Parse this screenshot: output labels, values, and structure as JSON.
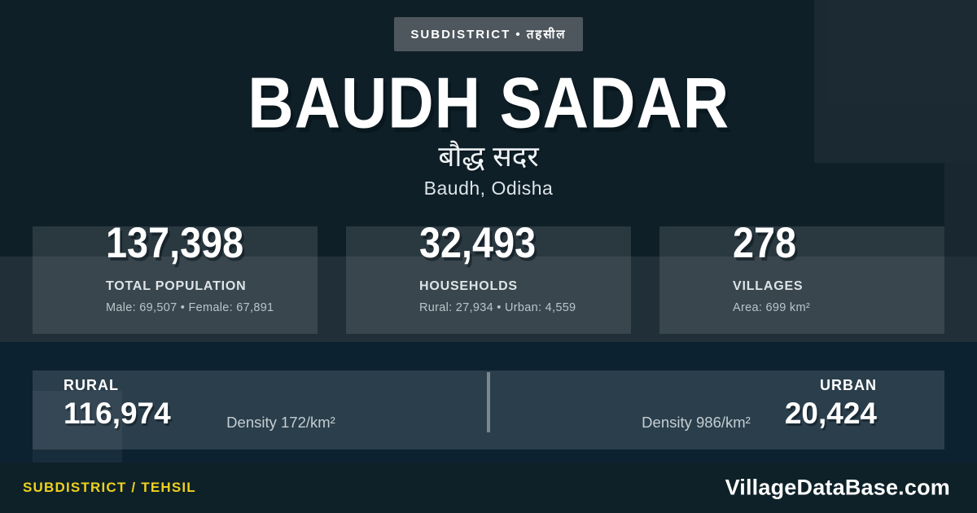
{
  "badge": {
    "label": "SUBDISTRICT • तहसील"
  },
  "header": {
    "title": "BAUDH SADAR",
    "title_native": "बौद्ध सदर",
    "location": "Baudh, Odisha"
  },
  "stats": [
    {
      "value": "137,398",
      "label": "TOTAL POPULATION",
      "detail": "Male: 69,507 • Female: 67,891"
    },
    {
      "value": "32,493",
      "label": "HOUSEHOLDS",
      "detail": "Rural: 27,934 • Urban: 4,559"
    },
    {
      "value": "278",
      "label": "VILLAGES",
      "detail": "Area: 699 km²"
    }
  ],
  "breakdown": {
    "rural": {
      "label": "RURAL",
      "value": "116,974",
      "density": "Density 172/km²"
    },
    "urban": {
      "label": "URBAN",
      "value": "20,424",
      "density": "Density 986/km²"
    }
  },
  "footer": {
    "left": "SUBDISTRICT / TEHSIL",
    "right": "VillageDataBase.com"
  },
  "colors": {
    "background": "#0F1F28",
    "band_overlay": "rgba(255,255,255,0.08)",
    "card_overlay": "rgba(255,255,255,0.12)",
    "bottom_section": "#0C2231",
    "footer_background": "#0E2128",
    "badge_background": "#4D575D",
    "accent_yellow": "#EFD11E",
    "text_primary": "#FFFFFF",
    "text_secondary": "#DDE4E7",
    "text_muted": "#B9C5CA"
  }
}
